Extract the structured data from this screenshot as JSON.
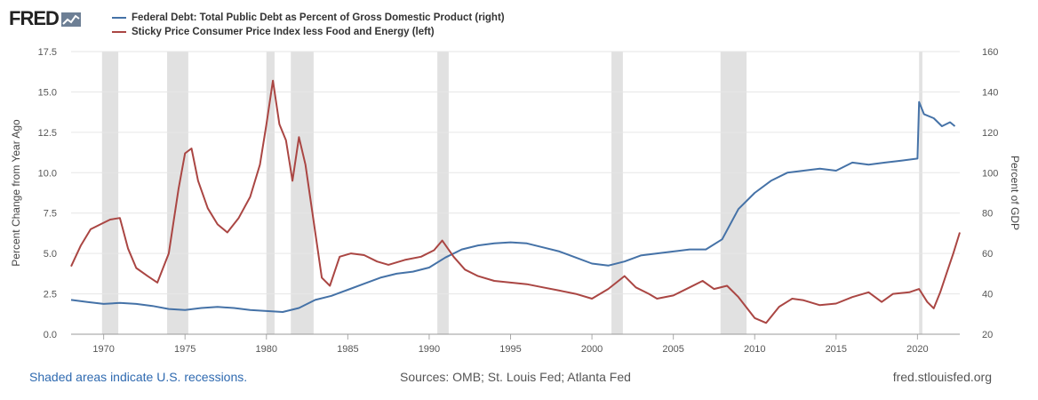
{
  "branding": {
    "logo_text": "FRED"
  },
  "footer": {
    "recession_note": "Shaded areas indicate U.S. recessions.",
    "sources": "Sources: OMB; St. Louis Fed; Atlanta Fed",
    "site": "fred.stlouisfed.org"
  },
  "chart_data": {
    "type": "line",
    "title": "",
    "xlabel": "",
    "ylabel_left": "Percent Change from Year Ago",
    "ylabel_right": "Percent of GDP",
    "xlim": [
      1968,
      2022.6
    ],
    "ylim_left": [
      0,
      17.5
    ],
    "ylim_right": [
      20,
      160
    ],
    "x_ticks": [
      1970,
      1975,
      1980,
      1985,
      1990,
      1995,
      2000,
      2005,
      2010,
      2015,
      2020
    ],
    "y_ticks_left": [
      "0.0",
      "2.5",
      "5.0",
      "7.5",
      "10.0",
      "12.5",
      "15.0",
      "17.5"
    ],
    "y_ticks_right": [
      20,
      40,
      60,
      80,
      100,
      120,
      140,
      160
    ],
    "recessions": [
      [
        1969.9,
        1970.9
      ],
      [
        1973.9,
        1975.2
      ],
      [
        1980.0,
        1980.5
      ],
      [
        1981.5,
        1982.9
      ],
      [
        1990.5,
        1991.2
      ],
      [
        2001.2,
        2001.9
      ],
      [
        2007.9,
        2009.5
      ],
      [
        2020.1,
        2020.3
      ]
    ],
    "series": [
      {
        "name": "Federal Debt: Total Public Debt as Percent of Gross Domestic Product (right)",
        "color": "#4572a7",
        "axis": "right",
        "points": [
          [
            1968,
            37
          ],
          [
            1969,
            36
          ],
          [
            1970,
            35
          ],
          [
            1971,
            35.5
          ],
          [
            1972,
            35
          ],
          [
            1973,
            34
          ],
          [
            1974,
            32.5
          ],
          [
            1975,
            32
          ],
          [
            1976,
            33
          ],
          [
            1977,
            33.5
          ],
          [
            1978,
            33
          ],
          [
            1979,
            32
          ],
          [
            1980,
            31.5
          ],
          [
            1981,
            31
          ],
          [
            1982,
            33
          ],
          [
            1983,
            37
          ],
          [
            1984,
            39
          ],
          [
            1985,
            42
          ],
          [
            1986,
            45
          ],
          [
            1987,
            48
          ],
          [
            1988,
            50
          ],
          [
            1989,
            51
          ],
          [
            1990,
            53
          ],
          [
            1991,
            58
          ],
          [
            1992,
            62
          ],
          [
            1993,
            64
          ],
          [
            1994,
            65
          ],
          [
            1995,
            65.5
          ],
          [
            1996,
            65
          ],
          [
            1997,
            63
          ],
          [
            1998,
            61
          ],
          [
            1999,
            58
          ],
          [
            2000,
            55
          ],
          [
            2001,
            54
          ],
          [
            2002,
            56
          ],
          [
            2003,
            59
          ],
          [
            2004,
            60
          ],
          [
            2005,
            61
          ],
          [
            2006,
            62
          ],
          [
            2007,
            62
          ],
          [
            2008,
            67
          ],
          [
            2009,
            82
          ],
          [
            2010,
            90
          ],
          [
            2011,
            96
          ],
          [
            2012,
            100
          ],
          [
            2013,
            101
          ],
          [
            2014,
            102
          ],
          [
            2015,
            101
          ],
          [
            2016,
            105
          ],
          [
            2017,
            104
          ],
          [
            2018,
            105
          ],
          [
            2019,
            106
          ],
          [
            2020.0,
            107
          ],
          [
            2020.1,
            135
          ],
          [
            2020.4,
            129
          ],
          [
            2021,
            127
          ],
          [
            2021.5,
            123
          ],
          [
            2022,
            125
          ],
          [
            2022.3,
            123
          ]
        ]
      },
      {
        "name": "Sticky Price Consumer Price Index less Food and Energy (left)",
        "color": "#aa4643",
        "axis": "left",
        "points": [
          [
            1968,
            4.2
          ],
          [
            1968.6,
            5.5
          ],
          [
            1969.2,
            6.5
          ],
          [
            1969.8,
            6.8
          ],
          [
            1970.4,
            7.1
          ],
          [
            1971,
            7.2
          ],
          [
            1971.5,
            5.3
          ],
          [
            1972,
            4.1
          ],
          [
            1972.7,
            3.6
          ],
          [
            1973.3,
            3.2
          ],
          [
            1974,
            5.0
          ],
          [
            1974.6,
            9.0
          ],
          [
            1975.0,
            11.2
          ],
          [
            1975.4,
            11.5
          ],
          [
            1975.8,
            9.5
          ],
          [
            1976.4,
            7.8
          ],
          [
            1977,
            6.8
          ],
          [
            1977.6,
            6.3
          ],
          [
            1978.3,
            7.2
          ],
          [
            1979,
            8.5
          ],
          [
            1979.6,
            10.5
          ],
          [
            1980.0,
            13.0
          ],
          [
            1980.4,
            15.7
          ],
          [
            1980.8,
            13.0
          ],
          [
            1981.2,
            12.0
          ],
          [
            1981.6,
            9.5
          ],
          [
            1982.0,
            12.2
          ],
          [
            1982.4,
            10.5
          ],
          [
            1982.9,
            7.0
          ],
          [
            1983.4,
            3.5
          ],
          [
            1983.9,
            3.0
          ],
          [
            1984.5,
            4.8
          ],
          [
            1985.2,
            5.0
          ],
          [
            1986,
            4.9
          ],
          [
            1986.8,
            4.5
          ],
          [
            1987.5,
            4.3
          ],
          [
            1988.5,
            4.6
          ],
          [
            1989.5,
            4.8
          ],
          [
            1990.3,
            5.2
          ],
          [
            1990.8,
            5.8
          ],
          [
            1991.5,
            4.8
          ],
          [
            1992.2,
            4.0
          ],
          [
            1993,
            3.6
          ],
          [
            1994,
            3.3
          ],
          [
            1995,
            3.2
          ],
          [
            1996,
            3.1
          ],
          [
            1997,
            2.9
          ],
          [
            1998,
            2.7
          ],
          [
            1999,
            2.5
          ],
          [
            2000,
            2.2
          ],
          [
            2001,
            2.8
          ],
          [
            2002,
            3.6
          ],
          [
            2002.7,
            2.9
          ],
          [
            2003.5,
            2.5
          ],
          [
            2004,
            2.2
          ],
          [
            2005,
            2.4
          ],
          [
            2006,
            2.9
          ],
          [
            2006.8,
            3.3
          ],
          [
            2007.5,
            2.8
          ],
          [
            2008.3,
            3.0
          ],
          [
            2009,
            2.3
          ],
          [
            2010,
            1.0
          ],
          [
            2010.7,
            0.7
          ],
          [
            2011.5,
            1.7
          ],
          [
            2012.3,
            2.2
          ],
          [
            2013,
            2.1
          ],
          [
            2014,
            1.8
          ],
          [
            2015,
            1.9
          ],
          [
            2016,
            2.3
          ],
          [
            2017,
            2.6
          ],
          [
            2017.8,
            2.0
          ],
          [
            2018.5,
            2.5
          ],
          [
            2019.5,
            2.6
          ],
          [
            2020.1,
            2.8
          ],
          [
            2020.6,
            2.0
          ],
          [
            2021.0,
            1.6
          ],
          [
            2021.4,
            2.6
          ],
          [
            2021.8,
            3.8
          ],
          [
            2022.2,
            5.0
          ],
          [
            2022.6,
            6.3
          ]
        ]
      }
    ]
  }
}
